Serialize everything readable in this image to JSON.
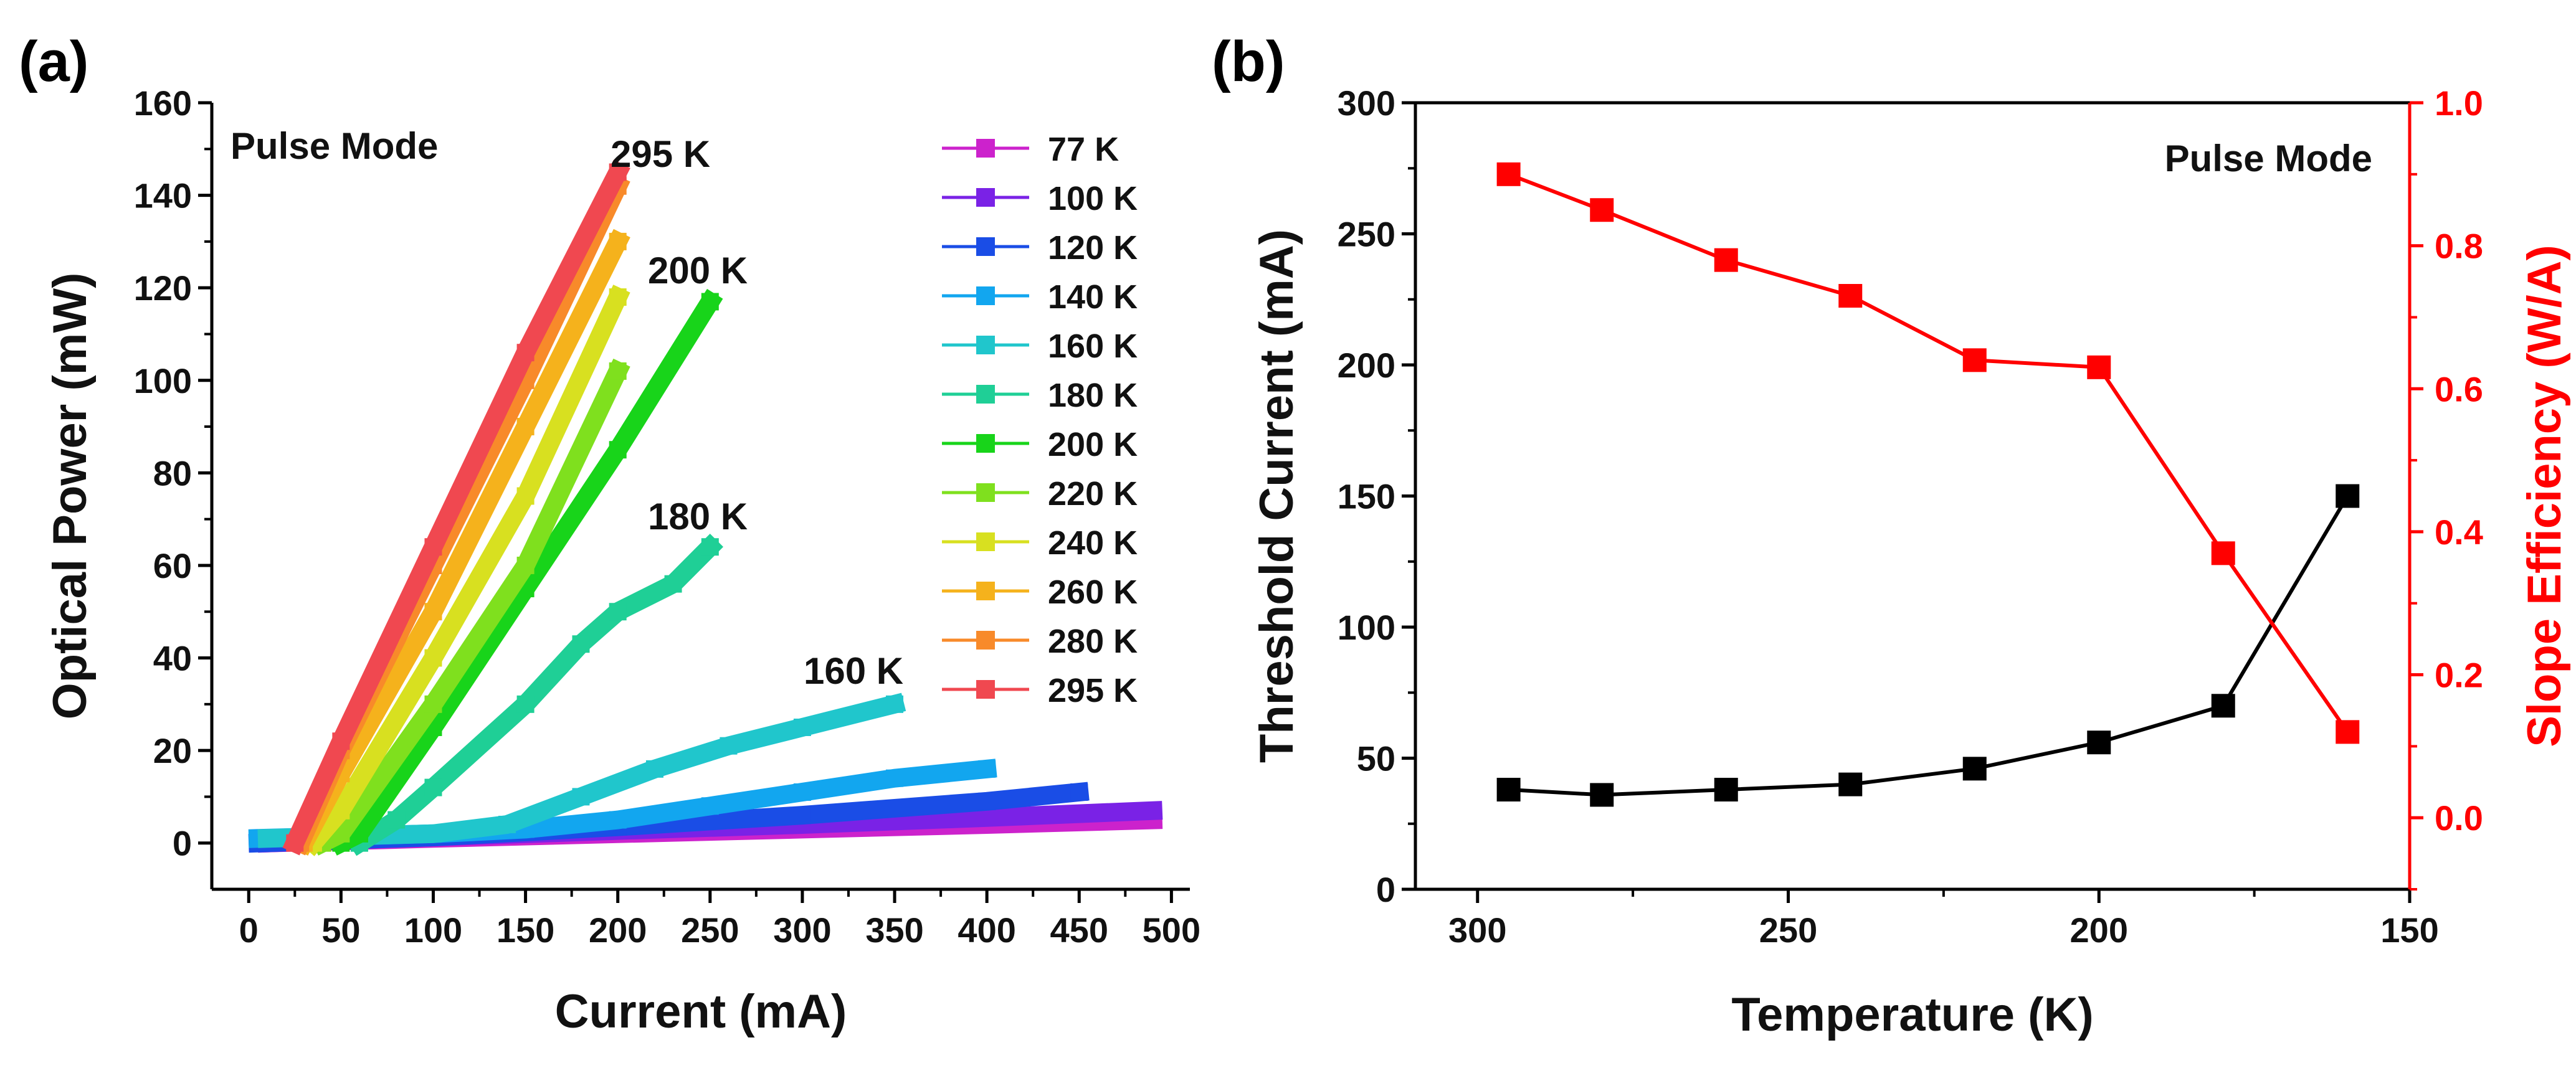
{
  "chart_data": [
    {
      "panel_label": "(a)",
      "type": "scatter",
      "title": "",
      "xlabel": "Current (mA)",
      "ylabel": "Optical Power (mW)",
      "xlim": [
        -20,
        510
      ],
      "ylim": [
        -10,
        160
      ],
      "xticks": [
        0,
        50,
        100,
        150,
        200,
        250,
        300,
        350,
        400,
        450,
        500
      ],
      "yticks": [
        0,
        20,
        40,
        60,
        80,
        100,
        120,
        140,
        160
      ],
      "annotation": "Pulse Mode",
      "curve_labels": [
        "295 K",
        "200 K",
        "180 K",
        "160 K"
      ],
      "legend_position": "top-right",
      "series": [
        {
          "name": "77 K",
          "color": "#cc22cc",
          "x": [
            10,
            100,
            200,
            300,
            400,
            490
          ],
          "y": [
            0,
            1.0,
            2.0,
            3.0,
            4.0,
            5.0
          ]
        },
        {
          "name": "100 K",
          "color": "#7a22e6",
          "x": [
            10,
            100,
            200,
            300,
            400,
            490
          ],
          "y": [
            0,
            1.3,
            2.7,
            4.0,
            5.5,
            7.0
          ]
        },
        {
          "name": "120 K",
          "color": "#1a4de6",
          "x": [
            5,
            100,
            200,
            300,
            400,
            450
          ],
          "y": [
            0,
            1.3,
            3.5,
            6.0,
            9.0,
            11.0
          ]
        },
        {
          "name": "140 K",
          "color": "#12a6ef",
          "x": [
            5,
            100,
            150,
            200,
            250,
            300,
            350,
            400
          ],
          "y": [
            1,
            2.0,
            3.0,
            5.0,
            8.0,
            11.0,
            14.0,
            16.0
          ]
        },
        {
          "name": "160 K",
          "color": "#20c6cc",
          "x": [
            10,
            100,
            140,
            180,
            220,
            260,
            300,
            350
          ],
          "y": [
            1,
            2.0,
            4.0,
            10.0,
            16.0,
            21.0,
            25.0,
            30.0
          ]
        },
        {
          "name": "180 K",
          "color": "#1fcf96",
          "x": [
            60,
            80,
            100,
            150,
            180,
            200,
            230,
            250
          ],
          "y": [
            0,
            5.0,
            12.0,
            30.0,
            43.0,
            50.0,
            56.0,
            64.0
          ]
        },
        {
          "name": "200 K",
          "color": "#18d41a",
          "x": [
            50,
            60,
            100,
            150,
            200,
            250
          ],
          "y": [
            0,
            2.0,
            25.0,
            55.0,
            85.0,
            117.0
          ]
        },
        {
          "name": "220 K",
          "color": "#7fe01e",
          "x": [
            40,
            50,
            100,
            150,
            200
          ],
          "y": [
            0,
            2.0,
            30.0,
            60.0,
            102.0
          ]
        },
        {
          "name": "240 K",
          "color": "#d8e020",
          "x": [
            35,
            50,
            100,
            150,
            200
          ],
          "y": [
            0,
            7.0,
            40.0,
            75.0,
            118.0
          ]
        },
        {
          "name": "260 K",
          "color": "#f5b21c",
          "x": [
            30,
            50,
            100,
            150,
            200
          ],
          "y": [
            0,
            15.0,
            50.0,
            90.0,
            130.0
          ]
        },
        {
          "name": "280 K",
          "color": "#f88a2a",
          "x": [
            28,
            50,
            100,
            150,
            200
          ],
          "y": [
            0,
            20.0,
            60.0,
            100.0,
            142.0
          ]
        },
        {
          "name": "295 K",
          "color": "#f04850",
          "x": [
            25,
            50,
            100,
            150,
            200
          ],
          "y": [
            0,
            22.0,
            64.0,
            106.0,
            145.0
          ]
        }
      ]
    },
    {
      "panel_label": "(b)",
      "type": "line",
      "title": "",
      "xlabel": "Temperature (K)",
      "ylabel": "Threshold Current (mA)",
      "ylabel_right": "Slope Efficiency (W/A)",
      "xlim": [
        310,
        150
      ],
      "ylim": [
        0,
        300
      ],
      "ylim_right": [
        -0.1,
        1.0
      ],
      "xticks": [
        300,
        250,
        200,
        150
      ],
      "yticks": [
        0,
        50,
        100,
        150,
        200,
        250,
        300
      ],
      "yticks_right": [
        "0.0",
        "0.2",
        "0.4",
        "0.6",
        "0.8",
        "1.0"
      ],
      "annotation": "Pulse Mode",
      "x": [
        295,
        280,
        260,
        240,
        220,
        200,
        180,
        160
      ],
      "series": [
        {
          "name": "Threshold Current",
          "axis": "left",
          "color": "#000000",
          "values": [
            38,
            36,
            38,
            40,
            46,
            56,
            70,
            150
          ]
        },
        {
          "name": "Slope Efficiency",
          "axis": "right",
          "color": "#ff0000",
          "values": [
            0.9,
            0.85,
            0.78,
            0.73,
            0.64,
            0.63,
            0.37,
            0.12
          ]
        }
      ]
    }
  ]
}
